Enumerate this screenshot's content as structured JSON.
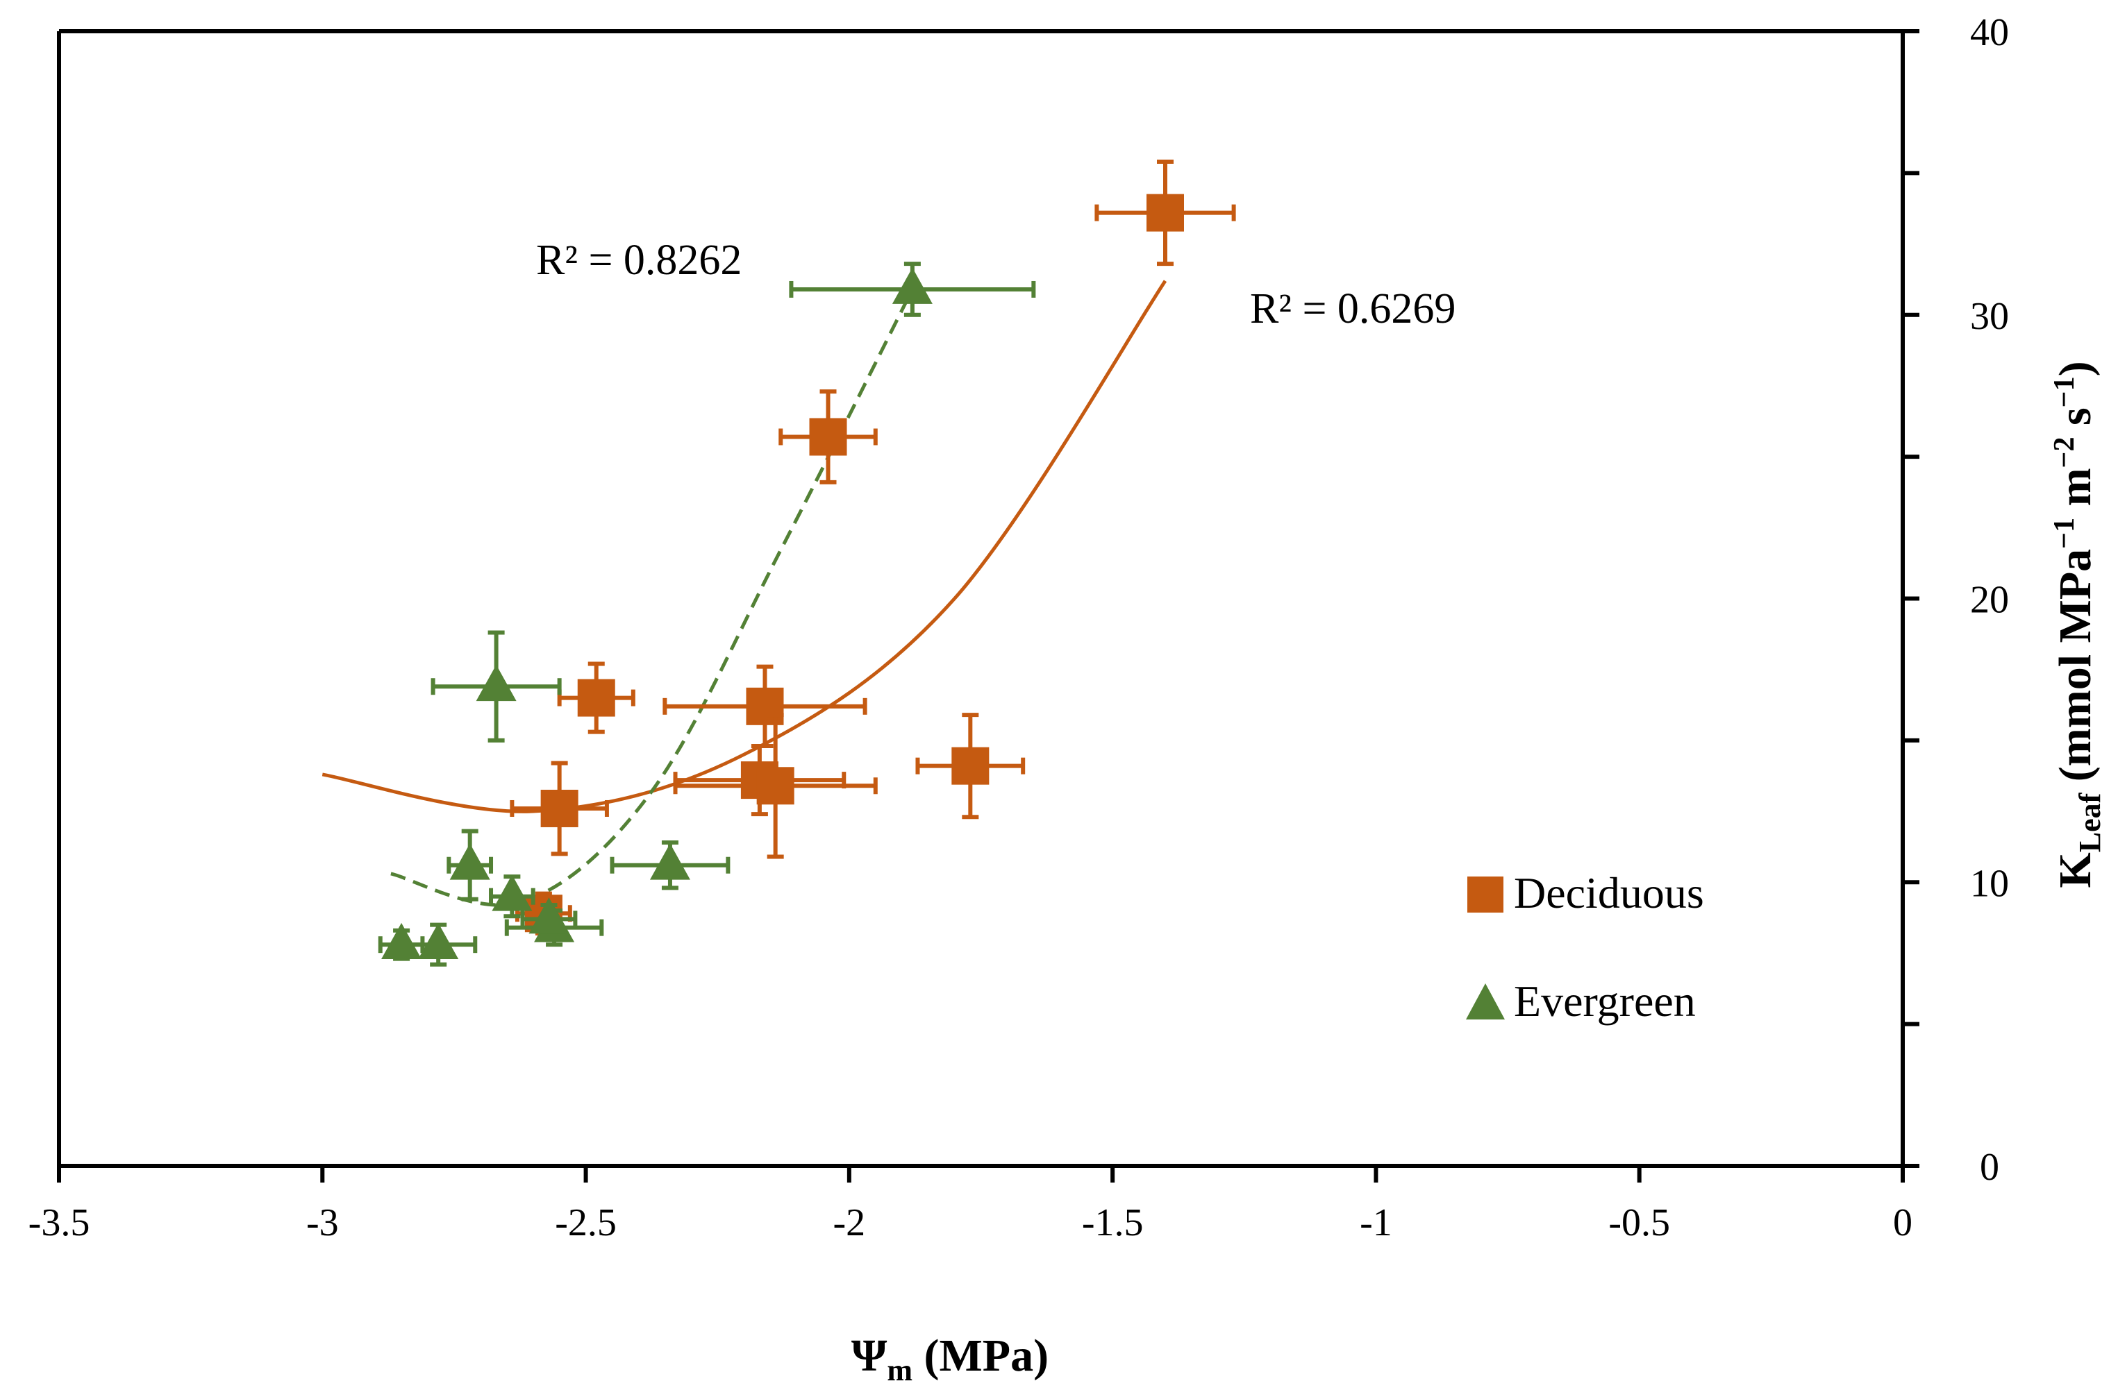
{
  "chart_data": {
    "type": "scatter",
    "title": "",
    "xlabel": {
      "symbol": "Ψ",
      "subscript": "m",
      "unit": " (MPa)"
    },
    "ylabel": {
      "prefix": "K",
      "subscript": "Leaf",
      "rest": " (mmol MPa",
      "sup1": "−1",
      "mid": " m",
      "sup2": "−2",
      "mid2": " s",
      "sup3": "−1",
      "end": ")"
    },
    "xlim": [
      -3.5,
      0
    ],
    "ylim": [
      0,
      40
    ],
    "xticks": [
      -3.5,
      -3,
      -2.5,
      -2,
      -1.5,
      -1,
      -0.5,
      0
    ],
    "xtick_labels": [
      "-3.5",
      "-3",
      "-2.5",
      "-2",
      "-1.5",
      "-1",
      "-0.5",
      "0"
    ],
    "yticks": [
      0,
      10,
      20,
      30,
      40
    ],
    "ytick_labels": [
      "0",
      "10",
      "20",
      "30",
      "40"
    ],
    "y_axis_side": "right",
    "grid": false,
    "colors": {
      "deciduous": "#c55a11",
      "evergreen": "#538135",
      "axis": "#000000"
    },
    "series": [
      {
        "name": "Deciduous",
        "marker": "square",
        "points": [
          {
            "x": -1.4,
            "y": 33.6,
            "xerr": 0.13,
            "yerr": 1.8
          },
          {
            "x": -2.04,
            "y": 25.7,
            "xerr": 0.09,
            "yerr": 1.6
          },
          {
            "x": -2.48,
            "y": 16.5,
            "xerr": 0.07,
            "yerr": 1.2
          },
          {
            "x": -2.16,
            "y": 16.2,
            "xerr": 0.19,
            "yerr": 1.4
          },
          {
            "x": -1.77,
            "y": 14.1,
            "xerr": 0.1,
            "yerr": 1.8
          },
          {
            "x": -2.17,
            "y": 13.6,
            "xerr": 0.16,
            "yerr": 1.2
          },
          {
            "x": -2.14,
            "y": 13.4,
            "xerr": 0.19,
            "yerr": 2.5
          },
          {
            "x": -2.55,
            "y": 12.6,
            "xerr": 0.09,
            "yerr": 1.6
          },
          {
            "x": -2.58,
            "y": 8.9,
            "xerr": 0.05,
            "yerr": 0.7
          }
        ],
        "trendline": {
          "type": "poly2",
          "style": "solid",
          "x_range": [
            -3.0,
            -1.4
          ],
          "points_y": [
            13.8,
            12.5,
            14.5,
            20.0,
            31.2
          ],
          "r2_label": "R² = 0.6269"
        }
      },
      {
        "name": "Evergreen",
        "marker": "triangle",
        "points": [
          {
            "x": -1.88,
            "y": 30.9,
            "xerr": 0.23,
            "yerr": 0.9
          },
          {
            "x": -2.67,
            "y": 16.9,
            "xerr": 0.12,
            "yerr": 1.9
          },
          {
            "x": -2.34,
            "y": 10.6,
            "xerr": 0.11,
            "yerr": 0.8
          },
          {
            "x": -2.72,
            "y": 10.6,
            "xerr": 0.04,
            "yerr": 1.2
          },
          {
            "x": -2.64,
            "y": 9.5,
            "xerr": 0.04,
            "yerr": 0.7
          },
          {
            "x": -2.56,
            "y": 8.4,
            "xerr": 0.09,
            "yerr": 0.6
          },
          {
            "x": -2.57,
            "y": 8.7,
            "xerr": 0.05,
            "yerr": 0.5
          },
          {
            "x": -2.78,
            "y": 7.8,
            "xerr": 0.07,
            "yerr": 0.7
          },
          {
            "x": -2.85,
            "y": 7.8,
            "xerr": 0.04,
            "yerr": 0.5
          }
        ],
        "trendline": {
          "type": "poly2",
          "style": "dashed",
          "x_range": [
            -2.87,
            -1.88
          ],
          "points_y": [
            10.3,
            9.3,
            13.2,
            21.8,
            30.9
          ],
          "r2_label": "R² = 0.8262"
        }
      }
    ],
    "legend": {
      "position": "bottom-right",
      "entries": [
        "Deciduous",
        "Evergreen"
      ]
    }
  }
}
